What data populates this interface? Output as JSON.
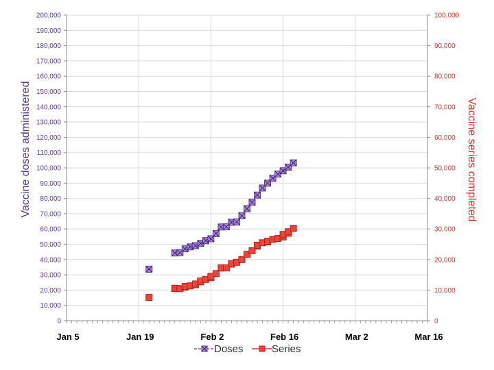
{
  "chart_data": {
    "type": "scatter",
    "title": "",
    "ylabel": "Vaccine doses administered",
    "y2label": "Vaccine series completed",
    "x_ticks": [
      "Jan 5",
      "Jan 19",
      "Feb 2",
      "Feb 16",
      "Mar 2",
      "Mar 16"
    ],
    "xlim": [
      "2021-01-05",
      "2021-03-16"
    ],
    "ylim": [
      0,
      200000
    ],
    "y2lim": [
      0,
      100000
    ],
    "y_ticks": [
      "0",
      "10,000",
      "20,000",
      "30,000",
      "40,000",
      "50,000",
      "60,000",
      "70,000",
      "80,000",
      "90,000",
      "100,000",
      "110,000",
      "120,000",
      "130,000",
      "140,000",
      "150,000",
      "160,000",
      "170,000",
      "180,000",
      "190,000",
      "200,000"
    ],
    "y2_ticks": [
      "0",
      "10,000",
      "20,000",
      "30,000",
      "40,000",
      "50,000",
      "60,000",
      "70,000",
      "80,000",
      "90,000",
      "100,000"
    ],
    "grid": true,
    "legend_position": "bottom",
    "series": [
      {
        "name": "Doses",
        "axis": "left",
        "color": "#7a4fbf",
        "marker": "square-x",
        "points": [
          {
            "x": "2021-01-21",
            "y": 33700
          },
          {
            "x": "2021-01-26",
            "y": 44300
          },
          {
            "x": "2021-01-27",
            "y": 44600
          },
          {
            "x": "2021-01-28",
            "y": 47000
          },
          {
            "x": "2021-01-29",
            "y": 48300
          },
          {
            "x": "2021-01-30",
            "y": 49100
          },
          {
            "x": "2021-01-31",
            "y": 50600
          },
          {
            "x": "2021-02-01",
            "y": 52400
          },
          {
            "x": "2021-02-02",
            "y": 53600
          },
          {
            "x": "2021-02-03",
            "y": 57000
          },
          {
            "x": "2021-02-04",
            "y": 61300
          },
          {
            "x": "2021-02-05",
            "y": 61400
          },
          {
            "x": "2021-02-06",
            "y": 64400
          },
          {
            "x": "2021-02-07",
            "y": 64600
          },
          {
            "x": "2021-02-08",
            "y": 68700
          },
          {
            "x": "2021-02-09",
            "y": 73300
          },
          {
            "x": "2021-02-10",
            "y": 77500
          },
          {
            "x": "2021-02-11",
            "y": 82200
          },
          {
            "x": "2021-02-12",
            "y": 86800
          },
          {
            "x": "2021-02-13",
            "y": 90000
          },
          {
            "x": "2021-02-14",
            "y": 93200
          },
          {
            "x": "2021-02-15",
            "y": 96000
          },
          {
            "x": "2021-02-16",
            "y": 98100
          },
          {
            "x": "2021-02-17",
            "y": 100500
          },
          {
            "x": "2021-02-18",
            "y": 103300
          }
        ]
      },
      {
        "name": "Series",
        "axis": "right",
        "color": "#e03b2f",
        "marker": "square",
        "points": [
          {
            "x": "2021-01-21",
            "y": 7600
          },
          {
            "x": "2021-01-26",
            "y": 10500
          },
          {
            "x": "2021-01-26",
            "y": 10600
          },
          {
            "x": "2021-01-27",
            "y": 10500
          },
          {
            "x": "2021-01-28",
            "y": 11000
          },
          {
            "x": "2021-01-28",
            "y": 11200
          },
          {
            "x": "2021-01-29",
            "y": 11400
          },
          {
            "x": "2021-01-30",
            "y": 11800
          },
          {
            "x": "2021-01-30",
            "y": 12000
          },
          {
            "x": "2021-01-31",
            "y": 12700
          },
          {
            "x": "2021-01-31",
            "y": 13000
          },
          {
            "x": "2021-02-01",
            "y": 13500
          },
          {
            "x": "2021-02-02",
            "y": 14100
          },
          {
            "x": "2021-02-02",
            "y": 14500
          },
          {
            "x": "2021-02-03",
            "y": 15400
          },
          {
            "x": "2021-02-04",
            "y": 17200
          },
          {
            "x": "2021-02-04",
            "y": 17300
          },
          {
            "x": "2021-02-05",
            "y": 17300
          },
          {
            "x": "2021-02-06",
            "y": 18500
          },
          {
            "x": "2021-02-06",
            "y": 18600
          },
          {
            "x": "2021-02-07",
            "y": 19100
          },
          {
            "x": "2021-02-08",
            "y": 20000
          },
          {
            "x": "2021-02-09",
            "y": 21700
          },
          {
            "x": "2021-02-10",
            "y": 22900
          },
          {
            "x": "2021-02-11",
            "y": 24400
          },
          {
            "x": "2021-02-11",
            "y": 24700
          },
          {
            "x": "2021-02-12",
            "y": 25500
          },
          {
            "x": "2021-02-13",
            "y": 25800
          },
          {
            "x": "2021-02-13",
            "y": 26000
          },
          {
            "x": "2021-02-14",
            "y": 26600
          },
          {
            "x": "2021-02-15",
            "y": 26900
          },
          {
            "x": "2021-02-16",
            "y": 27400
          },
          {
            "x": "2021-02-16",
            "y": 28200
          },
          {
            "x": "2021-02-17",
            "y": 28600
          },
          {
            "x": "2021-02-17",
            "y": 29100
          },
          {
            "x": "2021-02-18",
            "y": 30200
          }
        ]
      }
    ]
  }
}
